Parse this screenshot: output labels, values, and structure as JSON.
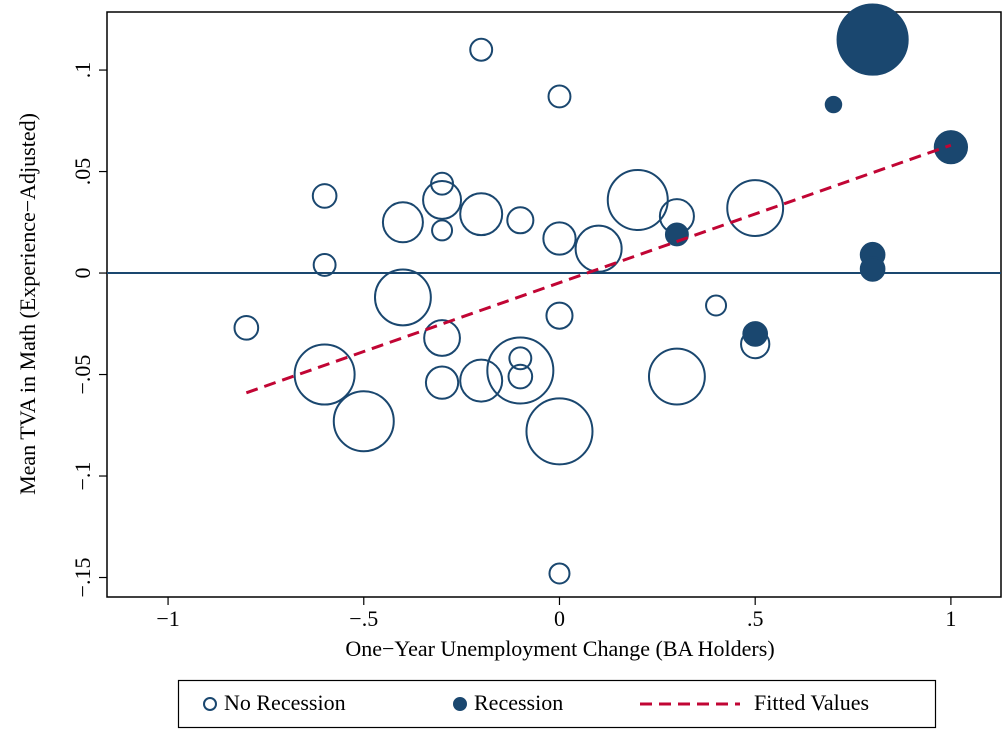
{
  "chart_data": {
    "type": "scatter",
    "x_label": "One−Year Unemployment Change (BA Holders)",
    "y_label": "Mean TVA in Math (Experience−Adjusted)",
    "xlim": [
      -1.156,
      1.128
    ],
    "ylim": [
      -0.1596,
      0.1286
    ],
    "xticks": [
      {
        "value": -1,
        "label": "−1"
      },
      {
        "value": -0.5,
        "label": "−.5"
      },
      0,
      {
        "value": 0.5,
        "label": ".5"
      },
      1
    ],
    "yticks": [
      {
        "value": -0.15,
        "label": "−.15"
      },
      {
        "value": -0.1,
        "label": "−.1"
      },
      {
        "value": -0.05,
        "label": "−.05"
      },
      0,
      {
        "value": 0.05,
        "label": ".05"
      },
      {
        "value": 0.1,
        "label": ".1"
      }
    ],
    "reference_line": 0,
    "reference_color": "#1a476f",
    "series": [
      {
        "name": "No Recession",
        "style": "hollow",
        "color": "#1a476f",
        "x": [
          -0.2,
          0,
          -0.6,
          -0.3,
          -0.3,
          -0.4,
          -0.3,
          -0.2,
          -0.1,
          0,
          0.1,
          0.2,
          0.3,
          0.5,
          -0.6,
          -0.4,
          -0.8,
          -0.3,
          0,
          0.4,
          -0.1,
          -0.1,
          -0.1,
          -0.6,
          -0.3,
          -0.2,
          0.3,
          0.5,
          -0.5,
          0,
          0
        ],
        "values": [
          0.11,
          0.087,
          0.038,
          0.044,
          0.036,
          0.025,
          0.021,
          0.029,
          0.026,
          0.017,
          0.012,
          0.036,
          0.028,
          0.032,
          0.004,
          -0.012,
          -0.027,
          -0.032,
          -0.021,
          -0.016,
          -0.042,
          -0.048,
          -0.051,
          -0.05,
          -0.054,
          -0.053,
          -0.051,
          -0.035,
          -0.073,
          -0.078,
          -0.148
        ],
        "sizes": [
          1.2,
          1.2,
          1.4,
          1.2,
          3.6,
          4,
          1,
          4.4,
          1.7,
          2.6,
          5.3,
          9,
          2.9,
          7.8,
          1.2,
          7.8,
          1.4,
          3.2,
          1.7,
          1,
          1.2,
          10.9,
          1.4,
          9,
          2.6,
          4.4,
          7.8,
          2,
          9,
          10.9,
          1
        ]
      },
      {
        "name": "Recession",
        "style": "filled",
        "color": "#1a476f",
        "x": [
          0.8,
          0.7,
          1,
          0.3,
          0.8,
          0.8,
          0.5
        ],
        "values": [
          0.115,
          0.083,
          0.062,
          0.019,
          0.009,
          0.002,
          -0.03
        ],
        "sizes": [
          12.3,
          0.6,
          2.6,
          1.2,
          1.4,
          1.4,
          1.4
        ]
      },
      {
        "name": "Fitted Values",
        "style": "dashed-line",
        "color": "#c10534",
        "x": [
          -0.8,
          1
        ],
        "values": [
          -0.059,
          0.063
        ]
      }
    ]
  }
}
